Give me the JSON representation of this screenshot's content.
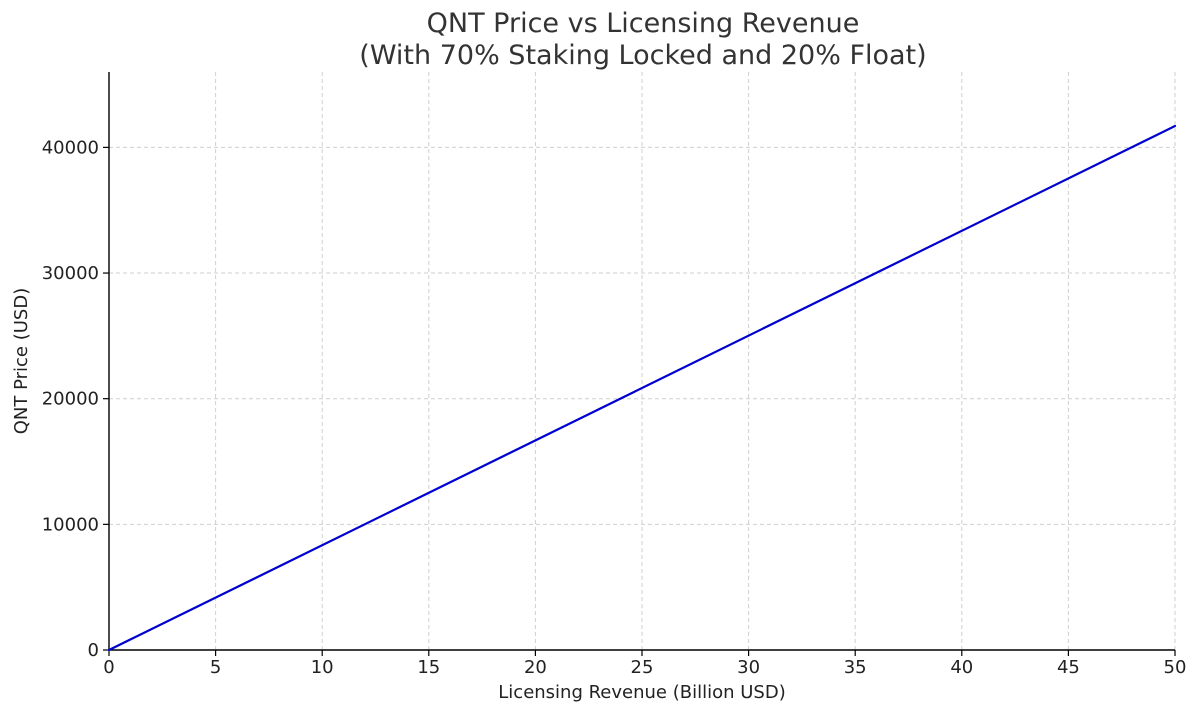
{
  "chart_data": {
    "type": "line",
    "title": "QNT Price vs Licensing Revenue",
    "subtitle": "(With 70% Staking Locked and 20% Float)",
    "xlabel": "Licensing Revenue (Billion USD)",
    "ylabel": "QNT Price (USD)",
    "xlim": [
      0,
      50
    ],
    "ylim": [
      0,
      46000
    ],
    "xticks": [
      0,
      5,
      10,
      15,
      20,
      25,
      30,
      35,
      40,
      45,
      50
    ],
    "yticks": [
      0,
      10000,
      20000,
      30000,
      40000
    ],
    "grid": true,
    "series": [
      {
        "name": "QNT Price",
        "color": "#0000d0",
        "x": [
          0,
          50
        ],
        "y": [
          0,
          41700
        ]
      }
    ]
  }
}
